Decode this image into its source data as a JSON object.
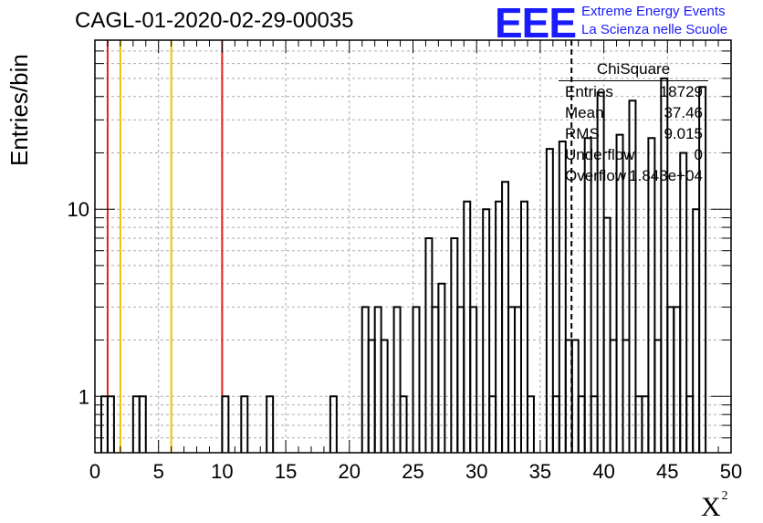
{
  "header": {
    "title": "CAGL-01-2020-02-29-00035",
    "logo_text": "EEE",
    "logo_line1": "Extreme Energy Events",
    "logo_line2": "La Scienza nelle Scuole"
  },
  "stats_box": {
    "title": "ChiSquare",
    "rows": [
      {
        "label": "Entries",
        "value": "18729"
      },
      {
        "label": "Mean",
        "value": "37.46"
      },
      {
        "label": "RMS",
        "value": "9.015"
      },
      {
        "label": "Underflow",
        "value": "0"
      },
      {
        "label": "Overflow",
        "value": "1.843e+04"
      }
    ]
  },
  "colors": {
    "red_line": "#e02020",
    "yellow_line": "#f0c000",
    "logo_blue": "#1a1aff",
    "grid": "#aaaaaa"
  },
  "chart_data": {
    "type": "bar",
    "style": "step-histogram",
    "xlabel": "X²",
    "ylabel": "Entries/bin",
    "xlim": [
      0,
      50
    ],
    "ylim": [
      0.5,
      80
    ],
    "yscale": "log",
    "grid": true,
    "bin_width": 0.5,
    "x_ticks": [
      "0",
      "5",
      "10",
      "15",
      "20",
      "25",
      "30",
      "35",
      "40",
      "45",
      "50"
    ],
    "y_ticks": [
      "1",
      "10"
    ],
    "bins": [
      {
        "x": 0.5,
        "y": 1
      },
      {
        "x": 1.0,
        "y": 1
      },
      {
        "x": 3.0,
        "y": 1
      },
      {
        "x": 3.5,
        "y": 1
      },
      {
        "x": 10.0,
        "y": 1
      },
      {
        "x": 11.5,
        "y": 1
      },
      {
        "x": 13.5,
        "y": 1
      },
      {
        "x": 18.5,
        "y": 1
      },
      {
        "x": 21.0,
        "y": 3
      },
      {
        "x": 21.5,
        "y": 2
      },
      {
        "x": 22.0,
        "y": 3
      },
      {
        "x": 22.5,
        "y": 2
      },
      {
        "x": 23.5,
        "y": 3
      },
      {
        "x": 24.0,
        "y": 1
      },
      {
        "x": 25.0,
        "y": 3
      },
      {
        "x": 26.0,
        "y": 7
      },
      {
        "x": 26.5,
        "y": 3
      },
      {
        "x": 27.0,
        "y": 4
      },
      {
        "x": 28.0,
        "y": 7
      },
      {
        "x": 28.5,
        "y": 3
      },
      {
        "x": 29.0,
        "y": 11
      },
      {
        "x": 29.5,
        "y": 3
      },
      {
        "x": 30.5,
        "y": 10
      },
      {
        "x": 31.0,
        "y": 1
      },
      {
        "x": 31.5,
        "y": 11
      },
      {
        "x": 32.0,
        "y": 14
      },
      {
        "x": 32.5,
        "y": 3
      },
      {
        "x": 33.0,
        "y": 3
      },
      {
        "x": 33.5,
        "y": 11
      },
      {
        "x": 34.0,
        "y": 1
      },
      {
        "x": 35.5,
        "y": 21
      },
      {
        "x": 36.0,
        "y": 1
      },
      {
        "x": 36.5,
        "y": 23
      },
      {
        "x": 37.0,
        "y": 2
      },
      {
        "x": 37.5,
        "y": 2
      },
      {
        "x": 38.0,
        "y": 1
      },
      {
        "x": 38.5,
        "y": 24
      },
      {
        "x": 39.0,
        "y": 1
      },
      {
        "x": 39.5,
        "y": 42
      },
      {
        "x": 40.0,
        "y": 9
      },
      {
        "x": 40.5,
        "y": 2
      },
      {
        "x": 41.0,
        "y": 25
      },
      {
        "x": 41.5,
        "y": 2
      },
      {
        "x": 42.0,
        "y": 38
      },
      {
        "x": 42.5,
        "y": 1
      },
      {
        "x": 43.0,
        "y": 1
      },
      {
        "x": 43.5,
        "y": 24
      },
      {
        "x": 44.0,
        "y": 2
      },
      {
        "x": 44.5,
        "y": 50
      },
      {
        "x": 45.0,
        "y": 3
      },
      {
        "x": 45.5,
        "y": 3
      },
      {
        "x": 46.0,
        "y": 20
      },
      {
        "x": 46.5,
        "y": 1
      },
      {
        "x": 47.0,
        "y": 10
      },
      {
        "x": 47.5,
        "y": 45
      }
    ],
    "vertical_lines": [
      {
        "x": 1.0,
        "color": "red"
      },
      {
        "x": 2.0,
        "color": "yellow"
      },
      {
        "x": 6.0,
        "color": "yellow"
      },
      {
        "x": 10.0,
        "color": "red"
      }
    ],
    "dashed_line_x": 37.46
  }
}
